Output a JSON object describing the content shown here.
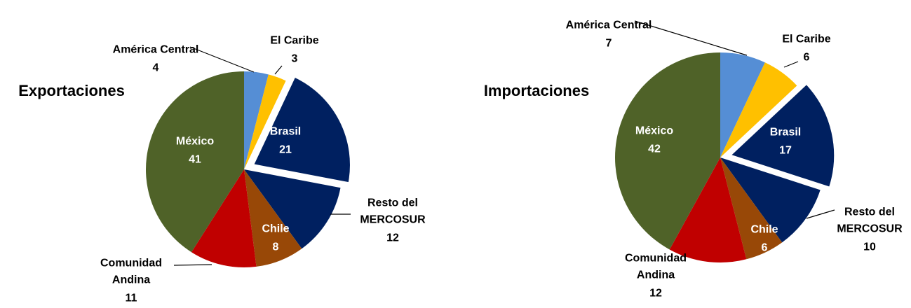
{
  "chart_data": [
    {
      "type": "pie",
      "title": "Exportaciones",
      "categories": [
        "América Central",
        "El Caribe",
        "Brasil",
        "Resto del MERCOSUR",
        "Chile",
        "Comunidad Andina",
        "México"
      ],
      "values": [
        4,
        3,
        21,
        12,
        8,
        11,
        41
      ],
      "colors": [
        "#558ed5",
        "#ffc000",
        "#002060",
        "#002060",
        "#984807",
        "#c00000",
        "#4f6228"
      ],
      "exploded": [
        false,
        false,
        true,
        false,
        false,
        false,
        false
      ]
    },
    {
      "type": "pie",
      "title": "Importaciones",
      "categories": [
        "América Central",
        "El Caribe",
        "Brasil",
        "Resto del MERCOSUR",
        "Chile",
        "Comunidad Andina",
        "México"
      ],
      "values": [
        7,
        6,
        17,
        10,
        6,
        12,
        42
      ],
      "colors": [
        "#558ed5",
        "#ffc000",
        "#002060",
        "#002060",
        "#984807",
        "#c00000",
        "#4f6228"
      ],
      "exploded": [
        false,
        false,
        true,
        false,
        false,
        false,
        false
      ]
    }
  ]
}
